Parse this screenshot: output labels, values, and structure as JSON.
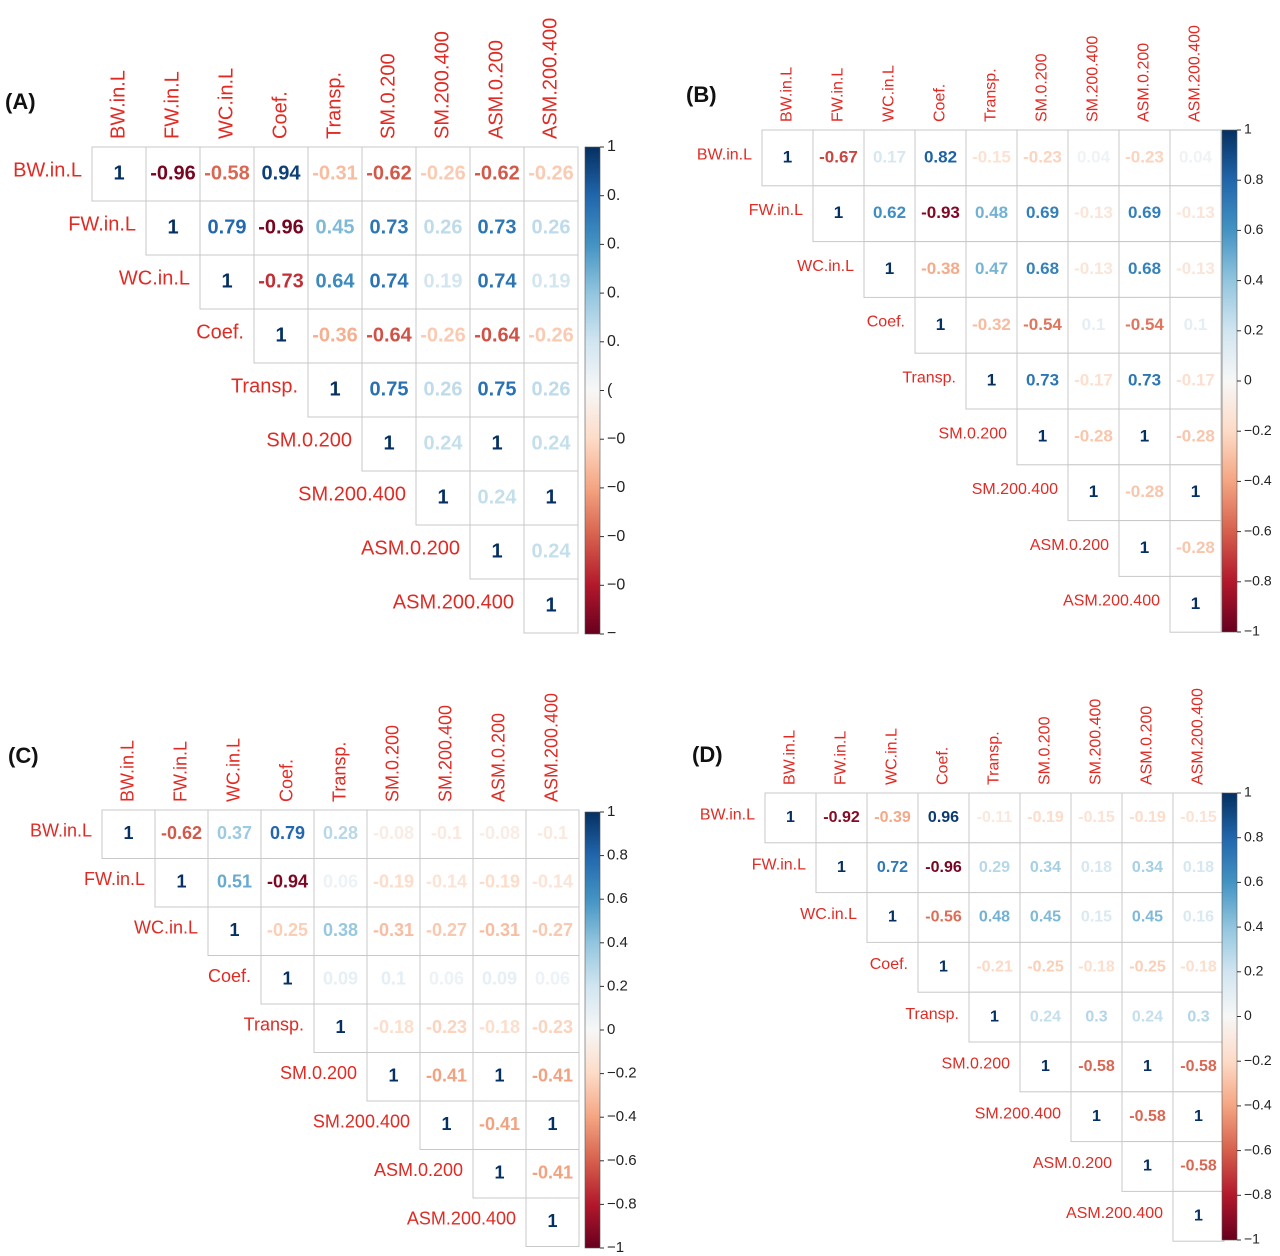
{
  "chart_data": [
    {
      "type": "corrplot",
      "panel_label": "(A)",
      "variables": [
        "BW.in.L",
        "FW.in.L",
        "WC.in.L",
        "Coef.",
        "Transp.",
        "SM.0.200",
        "SM.200.400",
        "ASM.0.200",
        "ASM.200.400"
      ],
      "values": [
        [
          1,
          -0.96,
          -0.58,
          0.94,
          -0.31,
          -0.62,
          -0.26,
          -0.62,
          -0.26
        ],
        [
          null,
          1,
          0.79,
          -0.96,
          0.45,
          0.73,
          0.26,
          0.73,
          0.26
        ],
        [
          null,
          null,
          1,
          -0.73,
          0.64,
          0.74,
          0.19,
          0.74,
          0.19
        ],
        [
          null,
          null,
          null,
          1,
          -0.36,
          -0.64,
          -0.26,
          -0.64,
          -0.26
        ],
        [
          null,
          null,
          null,
          null,
          1,
          0.75,
          0.26,
          0.75,
          0.26
        ],
        [
          null,
          null,
          null,
          null,
          null,
          1,
          0.24,
          1,
          0.24
        ],
        [
          null,
          null,
          null,
          null,
          null,
          null,
          1,
          0.24,
          1
        ],
        [
          null,
          null,
          null,
          null,
          null,
          null,
          null,
          1,
          0.24
        ],
        [
          null,
          null,
          null,
          null,
          null,
          null,
          null,
          null,
          1
        ]
      ],
      "clim": [
        -1,
        1
      ],
      "cticks": [
        1,
        {
          "value": 0.8,
          "label": "0."
        },
        {
          "value": 0.6,
          "label": "0."
        },
        {
          "value": 0.4,
          "label": "0."
        },
        {
          "value": 0.2,
          "label": "0."
        },
        {
          "value": 0,
          "label": "("
        },
        {
          "value": -0.2,
          "label": "−0"
        },
        {
          "value": -0.4,
          "label": "−0"
        },
        {
          "value": -0.6,
          "label": "−0"
        },
        {
          "value": -0.8,
          "label": "−0"
        },
        {
          "value": -1,
          "label": "−"
        }
      ],
      "colorscale": [
        "#67001f",
        "#b2182b",
        "#d6604d",
        "#f4a582",
        "#fddbc7",
        "#f7f7f7",
        "#d1e5f0",
        "#92c5de",
        "#4393c3",
        "#2166ac",
        "#053061"
      ]
    },
    {
      "type": "corrplot",
      "panel_label": "(B)",
      "variables": [
        "BW.in.L",
        "FW.in.L",
        "WC.in.L",
        "Coef.",
        "Transp.",
        "SM.0.200",
        "SM.200.400",
        "ASM.0.200",
        "ASM.200.400"
      ],
      "values": [
        [
          1,
          -0.67,
          0.17,
          0.82,
          -0.15,
          -0.23,
          0.04,
          -0.23,
          0.04
        ],
        [
          null,
          1,
          0.62,
          -0.93,
          0.48,
          0.69,
          -0.13,
          0.69,
          -0.13
        ],
        [
          null,
          null,
          1,
          -0.38,
          0.47,
          0.68,
          -0.13,
          0.68,
          -0.13
        ],
        [
          null,
          null,
          null,
          1,
          -0.32,
          -0.54,
          0.1,
          -0.54,
          0.1
        ],
        [
          null,
          null,
          null,
          null,
          1,
          0.73,
          -0.17,
          0.73,
          -0.17
        ],
        [
          null,
          null,
          null,
          null,
          null,
          1,
          -0.28,
          1,
          -0.28
        ],
        [
          null,
          null,
          null,
          null,
          null,
          null,
          1,
          -0.28,
          1
        ],
        [
          null,
          null,
          null,
          null,
          null,
          null,
          null,
          1,
          -0.28
        ],
        [
          null,
          null,
          null,
          null,
          null,
          null,
          null,
          null,
          1
        ]
      ],
      "clim": [
        -1,
        1
      ],
      "cticks": [
        1,
        0.8,
        0.6,
        0.4,
        0.2,
        0,
        {
          "value": -0.2,
          "label": "−0.2"
        },
        {
          "value": -0.4,
          "label": "−0.4"
        },
        {
          "value": -0.6,
          "label": "−0.6"
        },
        {
          "value": -0.8,
          "label": "−0.8"
        },
        {
          "value": -1,
          "label": "−1"
        }
      ],
      "colorscale": [
        "#67001f",
        "#b2182b",
        "#d6604d",
        "#f4a582",
        "#fddbc7",
        "#f7f7f7",
        "#d1e5f0",
        "#92c5de",
        "#4393c3",
        "#2166ac",
        "#053061"
      ]
    },
    {
      "type": "corrplot",
      "panel_label": "(C)",
      "variables": [
        "BW.in.L",
        "FW.in.L",
        "WC.in.L",
        "Coef.",
        "Transp.",
        "SM.0.200",
        "SM.200.400",
        "ASM.0.200",
        "ASM.200.400"
      ],
      "values": [
        [
          1,
          -0.62,
          0.37,
          0.79,
          0.28,
          -0.08,
          -0.1,
          -0.08,
          -0.1
        ],
        [
          null,
          1,
          0.51,
          -0.94,
          0.06,
          -0.19,
          -0.14,
          -0.19,
          -0.14
        ],
        [
          null,
          null,
          1,
          -0.25,
          0.38,
          -0.31,
          -0.27,
          -0.31,
          -0.27
        ],
        [
          null,
          null,
          null,
          1,
          0.09,
          0.1,
          0.06,
          0.09,
          0.06
        ],
        [
          null,
          null,
          null,
          null,
          1,
          -0.18,
          -0.23,
          -0.18,
          -0.23
        ],
        [
          null,
          null,
          null,
          null,
          null,
          1,
          -0.41,
          1,
          -0.41
        ],
        [
          null,
          null,
          null,
          null,
          null,
          null,
          1,
          -0.41,
          1
        ],
        [
          null,
          null,
          null,
          null,
          null,
          null,
          null,
          1,
          -0.41
        ],
        [
          null,
          null,
          null,
          null,
          null,
          null,
          null,
          null,
          1
        ]
      ],
      "clim": [
        -1,
        1
      ],
      "cticks": [
        1,
        0.8,
        0.6,
        0.4,
        0.2,
        0,
        {
          "value": -0.2,
          "label": "−0.2"
        },
        {
          "value": -0.4,
          "label": "−0.4"
        },
        {
          "value": -0.6,
          "label": "−0.6"
        },
        {
          "value": -0.8,
          "label": "−0.8"
        },
        {
          "value": -1,
          "label": "−1"
        }
      ],
      "colorscale": [
        "#67001f",
        "#b2182b",
        "#d6604d",
        "#f4a582",
        "#fddbc7",
        "#f7f7f7",
        "#d1e5f0",
        "#92c5de",
        "#4393c3",
        "#2166ac",
        "#053061"
      ]
    },
    {
      "type": "corrplot",
      "panel_label": "(D)",
      "variables": [
        "BW.in.L",
        "FW.in.L",
        "WC.in.L",
        "Coef.",
        "Transp.",
        "SM.0.200",
        "SM.200.400",
        "ASM.0.200",
        "ASM.200.400"
      ],
      "values": [
        [
          1,
          -0.92,
          -0.39,
          0.96,
          -0.11,
          -0.19,
          -0.15,
          -0.19,
          -0.15
        ],
        [
          null,
          1,
          0.72,
          -0.96,
          0.29,
          0.34,
          0.18,
          0.34,
          0.18
        ],
        [
          null,
          null,
          1,
          -0.56,
          0.48,
          0.45,
          0.15,
          0.45,
          0.16
        ],
        [
          null,
          null,
          null,
          1,
          -0.21,
          -0.25,
          -0.18,
          -0.25,
          -0.18
        ],
        [
          null,
          null,
          null,
          null,
          1,
          0.24,
          0.3,
          0.24,
          0.3
        ],
        [
          null,
          null,
          null,
          null,
          null,
          1,
          -0.58,
          1,
          -0.58
        ],
        [
          null,
          null,
          null,
          null,
          null,
          null,
          1,
          -0.58,
          1
        ],
        [
          null,
          null,
          null,
          null,
          null,
          null,
          null,
          1,
          -0.58
        ],
        [
          null,
          null,
          null,
          null,
          null,
          null,
          null,
          null,
          1
        ]
      ],
      "clim": [
        -1,
        1
      ],
      "cticks": [
        1,
        0.8,
        0.6,
        0.4,
        0.2,
        0,
        {
          "value": -0.2,
          "label": "−0.2"
        },
        {
          "value": -0.4,
          "label": "−0.4"
        },
        {
          "value": -0.6,
          "label": "−0.6"
        },
        {
          "value": -0.8,
          "label": "−0.8"
        },
        {
          "value": -1,
          "label": "−1"
        }
      ],
      "colorscale": [
        "#67001f",
        "#b2182b",
        "#d6604d",
        "#f4a582",
        "#fddbc7",
        "#f7f7f7",
        "#d1e5f0",
        "#92c5de",
        "#4393c3",
        "#2166ac",
        "#053061"
      ]
    }
  ]
}
